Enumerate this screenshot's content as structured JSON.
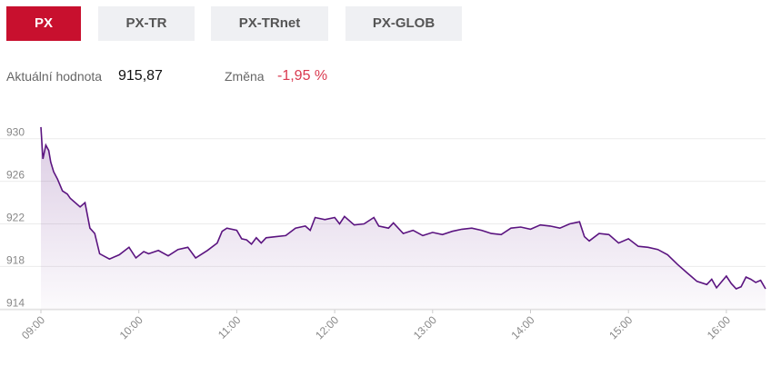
{
  "tabs": [
    "PX",
    "PX-TR",
    "PX-TRnet",
    "PX-GLOB"
  ],
  "info": {
    "value_label": "Aktuální hodnota",
    "value": "915,87",
    "change_label": "Změna",
    "change": "-1,95 %"
  },
  "chart_data": {
    "type": "line",
    "x": [
      9.0,
      9.02,
      9.05,
      9.08,
      9.1,
      9.13,
      9.17,
      9.22,
      9.27,
      9.3,
      9.4,
      9.45,
      9.5,
      9.55,
      9.6,
      9.7,
      9.8,
      9.9,
      9.97,
      10.05,
      10.1,
      10.2,
      10.3,
      10.4,
      10.5,
      10.58,
      10.7,
      10.8,
      10.85,
      10.9,
      11.0,
      11.05,
      11.1,
      11.15,
      11.2,
      11.25,
      11.3,
      11.4,
      11.5,
      11.6,
      11.7,
      11.75,
      11.8,
      11.9,
      12.0,
      12.05,
      12.1,
      12.2,
      12.3,
      12.4,
      12.45,
      12.55,
      12.6,
      12.7,
      12.8,
      12.9,
      13.0,
      13.1,
      13.2,
      13.3,
      13.4,
      13.5,
      13.6,
      13.7,
      13.8,
      13.9,
      14.0,
      14.1,
      14.2,
      14.3,
      14.4,
      14.5,
      14.55,
      14.6,
      14.7,
      14.8,
      14.9,
      15.0,
      15.1,
      15.2,
      15.3,
      15.4,
      15.5,
      15.6,
      15.7,
      15.8,
      15.85,
      15.9,
      16.0,
      16.05,
      16.1,
      16.15,
      16.2,
      16.25,
      16.3,
      16.35,
      16.4
    ],
    "series": [
      {
        "name": "PX",
        "color": "#5b1480",
        "values": [
          930.5,
          927.5,
          928.8,
          928.3,
          927.2,
          926.3,
          925.6,
          924.5,
          924.2,
          923.8,
          923.0,
          923.4,
          921.0,
          920.5,
          918.6,
          918.1,
          918.5,
          919.2,
          918.2,
          918.8,
          918.6,
          918.9,
          918.4,
          919.0,
          919.2,
          918.2,
          918.9,
          919.6,
          920.7,
          921.0,
          920.8,
          920.0,
          919.9,
          919.5,
          920.1,
          919.6,
          920.1,
          920.2,
          920.3,
          921.0,
          921.2,
          920.8,
          922.0,
          921.8,
          922.0,
          921.4,
          922.1,
          921.3,
          921.4,
          922.0,
          921.2,
          921.0,
          921.5,
          920.5,
          920.8,
          920.3,
          920.6,
          920.4,
          920.7,
          920.9,
          921.0,
          920.8,
          920.5,
          920.4,
          921.0,
          921.1,
          920.9,
          921.3,
          921.2,
          921.0,
          921.4,
          921.6,
          920.2,
          919.8,
          920.5,
          920.4,
          919.6,
          920.0,
          919.3,
          919.2,
          919.0,
          918.5,
          917.6,
          916.8,
          916.0,
          915.7,
          916.2,
          915.4,
          916.5,
          915.8,
          915.3,
          915.5,
          916.4,
          916.2,
          915.9,
          916.1,
          915.3
        ]
      }
    ],
    "xlim": [
      9,
      16.4
    ],
    "xticks": [
      {
        "value": 9,
        "label": "09:00"
      },
      {
        "value": 10,
        "label": "10:00"
      },
      {
        "value": 11,
        "label": "11:00"
      },
      {
        "value": 12,
        "label": "12:00"
      },
      {
        "value": 13,
        "label": "13:00"
      },
      {
        "value": 14,
        "label": "14:00"
      },
      {
        "value": 15,
        "label": "15:00"
      },
      {
        "value": 16,
        "label": "16:00"
      }
    ],
    "ylim": [
      913,
      931
    ],
    "yticks": [
      914,
      918,
      922,
      926,
      930
    ],
    "grid": true
  }
}
